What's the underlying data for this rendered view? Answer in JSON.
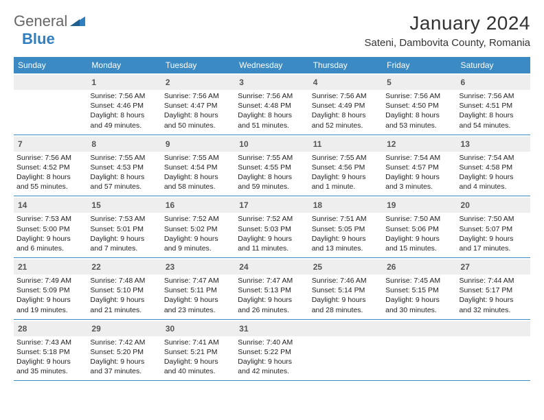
{
  "brand": {
    "general": "General",
    "blue": "Blue"
  },
  "header": {
    "month": "January 2024",
    "location": "Sateni, Dambovita County, Romania"
  },
  "colors": {
    "accent": "#3b8ac4",
    "daybar": "#eeeeee",
    "border": "#3b8ac4"
  },
  "dow": [
    "Sunday",
    "Monday",
    "Tuesday",
    "Wednesday",
    "Thursday",
    "Friday",
    "Saturday"
  ],
  "weeks": [
    [
      null,
      {
        "n": "1",
        "sr": "Sunrise: 7:56 AM",
        "ss": "Sunset: 4:46 PM",
        "d1": "Daylight: 8 hours",
        "d2": "and 49 minutes."
      },
      {
        "n": "2",
        "sr": "Sunrise: 7:56 AM",
        "ss": "Sunset: 4:47 PM",
        "d1": "Daylight: 8 hours",
        "d2": "and 50 minutes."
      },
      {
        "n": "3",
        "sr": "Sunrise: 7:56 AM",
        "ss": "Sunset: 4:48 PM",
        "d1": "Daylight: 8 hours",
        "d2": "and 51 minutes."
      },
      {
        "n": "4",
        "sr": "Sunrise: 7:56 AM",
        "ss": "Sunset: 4:49 PM",
        "d1": "Daylight: 8 hours",
        "d2": "and 52 minutes."
      },
      {
        "n": "5",
        "sr": "Sunrise: 7:56 AM",
        "ss": "Sunset: 4:50 PM",
        "d1": "Daylight: 8 hours",
        "d2": "and 53 minutes."
      },
      {
        "n": "6",
        "sr": "Sunrise: 7:56 AM",
        "ss": "Sunset: 4:51 PM",
        "d1": "Daylight: 8 hours",
        "d2": "and 54 minutes."
      }
    ],
    [
      {
        "n": "7",
        "sr": "Sunrise: 7:56 AM",
        "ss": "Sunset: 4:52 PM",
        "d1": "Daylight: 8 hours",
        "d2": "and 55 minutes."
      },
      {
        "n": "8",
        "sr": "Sunrise: 7:55 AM",
        "ss": "Sunset: 4:53 PM",
        "d1": "Daylight: 8 hours",
        "d2": "and 57 minutes."
      },
      {
        "n": "9",
        "sr": "Sunrise: 7:55 AM",
        "ss": "Sunset: 4:54 PM",
        "d1": "Daylight: 8 hours",
        "d2": "and 58 minutes."
      },
      {
        "n": "10",
        "sr": "Sunrise: 7:55 AM",
        "ss": "Sunset: 4:55 PM",
        "d1": "Daylight: 8 hours",
        "d2": "and 59 minutes."
      },
      {
        "n": "11",
        "sr": "Sunrise: 7:55 AM",
        "ss": "Sunset: 4:56 PM",
        "d1": "Daylight: 9 hours",
        "d2": "and 1 minute."
      },
      {
        "n": "12",
        "sr": "Sunrise: 7:54 AM",
        "ss": "Sunset: 4:57 PM",
        "d1": "Daylight: 9 hours",
        "d2": "and 3 minutes."
      },
      {
        "n": "13",
        "sr": "Sunrise: 7:54 AM",
        "ss": "Sunset: 4:58 PM",
        "d1": "Daylight: 9 hours",
        "d2": "and 4 minutes."
      }
    ],
    [
      {
        "n": "14",
        "sr": "Sunrise: 7:53 AM",
        "ss": "Sunset: 5:00 PM",
        "d1": "Daylight: 9 hours",
        "d2": "and 6 minutes."
      },
      {
        "n": "15",
        "sr": "Sunrise: 7:53 AM",
        "ss": "Sunset: 5:01 PM",
        "d1": "Daylight: 9 hours",
        "d2": "and 7 minutes."
      },
      {
        "n": "16",
        "sr": "Sunrise: 7:52 AM",
        "ss": "Sunset: 5:02 PM",
        "d1": "Daylight: 9 hours",
        "d2": "and 9 minutes."
      },
      {
        "n": "17",
        "sr": "Sunrise: 7:52 AM",
        "ss": "Sunset: 5:03 PM",
        "d1": "Daylight: 9 hours",
        "d2": "and 11 minutes."
      },
      {
        "n": "18",
        "sr": "Sunrise: 7:51 AM",
        "ss": "Sunset: 5:05 PM",
        "d1": "Daylight: 9 hours",
        "d2": "and 13 minutes."
      },
      {
        "n": "19",
        "sr": "Sunrise: 7:50 AM",
        "ss": "Sunset: 5:06 PM",
        "d1": "Daylight: 9 hours",
        "d2": "and 15 minutes."
      },
      {
        "n": "20",
        "sr": "Sunrise: 7:50 AM",
        "ss": "Sunset: 5:07 PM",
        "d1": "Daylight: 9 hours",
        "d2": "and 17 minutes."
      }
    ],
    [
      {
        "n": "21",
        "sr": "Sunrise: 7:49 AM",
        "ss": "Sunset: 5:09 PM",
        "d1": "Daylight: 9 hours",
        "d2": "and 19 minutes."
      },
      {
        "n": "22",
        "sr": "Sunrise: 7:48 AM",
        "ss": "Sunset: 5:10 PM",
        "d1": "Daylight: 9 hours",
        "d2": "and 21 minutes."
      },
      {
        "n": "23",
        "sr": "Sunrise: 7:47 AM",
        "ss": "Sunset: 5:11 PM",
        "d1": "Daylight: 9 hours",
        "d2": "and 23 minutes."
      },
      {
        "n": "24",
        "sr": "Sunrise: 7:47 AM",
        "ss": "Sunset: 5:13 PM",
        "d1": "Daylight: 9 hours",
        "d2": "and 26 minutes."
      },
      {
        "n": "25",
        "sr": "Sunrise: 7:46 AM",
        "ss": "Sunset: 5:14 PM",
        "d1": "Daylight: 9 hours",
        "d2": "and 28 minutes."
      },
      {
        "n": "26",
        "sr": "Sunrise: 7:45 AM",
        "ss": "Sunset: 5:15 PM",
        "d1": "Daylight: 9 hours",
        "d2": "and 30 minutes."
      },
      {
        "n": "27",
        "sr": "Sunrise: 7:44 AM",
        "ss": "Sunset: 5:17 PM",
        "d1": "Daylight: 9 hours",
        "d2": "and 32 minutes."
      }
    ],
    [
      {
        "n": "28",
        "sr": "Sunrise: 7:43 AM",
        "ss": "Sunset: 5:18 PM",
        "d1": "Daylight: 9 hours",
        "d2": "and 35 minutes."
      },
      {
        "n": "29",
        "sr": "Sunrise: 7:42 AM",
        "ss": "Sunset: 5:20 PM",
        "d1": "Daylight: 9 hours",
        "d2": "and 37 minutes."
      },
      {
        "n": "30",
        "sr": "Sunrise: 7:41 AM",
        "ss": "Sunset: 5:21 PM",
        "d1": "Daylight: 9 hours",
        "d2": "and 40 minutes."
      },
      {
        "n": "31",
        "sr": "Sunrise: 7:40 AM",
        "ss": "Sunset: 5:22 PM",
        "d1": "Daylight: 9 hours",
        "d2": "and 42 minutes."
      },
      null,
      null,
      null
    ]
  ]
}
